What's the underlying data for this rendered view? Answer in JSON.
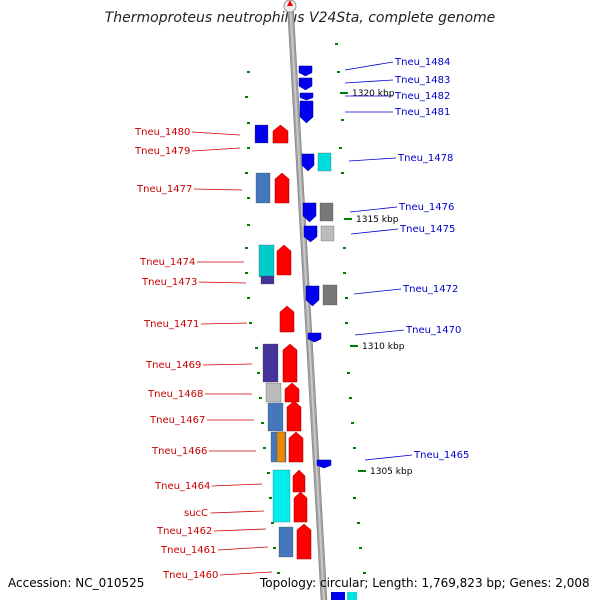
{
  "title": "Thermoproteus neutrophilus V24Sta, complete genome",
  "footer": {
    "accession": "Accession: NC_010525",
    "summary": "Topology: circular; Length: 1,769,823 bp; Genes: 2,008"
  },
  "colors": {
    "forward_gene": "#ff0000",
    "reverse_gene": "#0000ee",
    "forward_label": "#cc0000",
    "reverse_label": "#0000cc",
    "backbone": "#999999"
  },
  "scale_labels": [
    "1320 kbp",
    "1315 kbp",
    "1310 kbp",
    "1305 kbp"
  ],
  "left_labels": [
    "Tneu_1480",
    "Tneu_1479",
    "Tneu_1477",
    "Tneu_1474",
    "Tneu_1473",
    "Tneu_1471",
    "Tneu_1469",
    "Tneu_1468",
    "Tneu_1467",
    "Tneu_1466",
    "Tneu_1464",
    "sucC",
    "Tneu_1462",
    "Tneu_1461",
    "Tneu_1460"
  ],
  "right_labels": [
    "Tneu_1484",
    "Tneu_1483",
    "Tneu_1482",
    "Tneu_1481",
    "Tneu_1478",
    "Tneu_1476",
    "Tneu_1475",
    "Tneu_1472",
    "Tneu_1470",
    "Tneu_1465"
  ]
}
